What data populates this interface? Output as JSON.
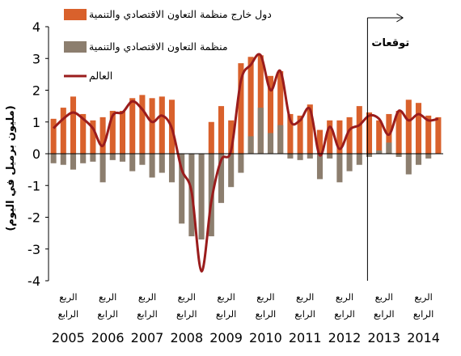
{
  "chart_data": {
    "type": "bar",
    "ylabel": "(مليون برميل في اليوم)",
    "ylim": [
      -4,
      4
    ],
    "yticks": [
      -4,
      -3,
      -2,
      -1,
      0,
      1,
      2,
      3,
      4
    ],
    "forecast_label": "توقعات",
    "forecast_start_index": 32,
    "quarter_line1": "الربع",
    "quarter_line2": "الرابع",
    "years": [
      "2005",
      "2006",
      "2007",
      "2008",
      "2009",
      "2010",
      "2011",
      "2012",
      "2013",
      "2014"
    ],
    "x": [
      "2005Q1",
      "2005Q2",
      "2005Q3",
      "2005Q4",
      "2006Q1",
      "2006Q2",
      "2006Q3",
      "2006Q4",
      "2007Q1",
      "2007Q2",
      "2007Q3",
      "2007Q4",
      "2008Q1",
      "2008Q2",
      "2008Q3",
      "2008Q4",
      "2009Q1",
      "2009Q2",
      "2009Q3",
      "2009Q4",
      "2010Q1",
      "2010Q2",
      "2010Q3",
      "2010Q4",
      "2011Q1",
      "2011Q2",
      "2011Q3",
      "2011Q4",
      "2012Q1",
      "2012Q2",
      "2012Q3",
      "2012Q4",
      "2013Q1",
      "2013Q2",
      "2013Q3",
      "2013Q4",
      "2014Q1",
      "2014Q2",
      "2014Q3",
      "2014Q4"
    ],
    "series": [
      {
        "name": "دول خارج منظمة التعاون الاقتصادي والتنمية",
        "type": "bar",
        "color": "#d9612c",
        "values": [
          1.1,
          1.45,
          1.8,
          1.25,
          1.05,
          1.15,
          1.35,
          1.35,
          1.75,
          1.85,
          1.75,
          1.8,
          1.7,
          0.0,
          0.0,
          0.0,
          1.0,
          1.5,
          1.05,
          2.85,
          3.05,
          3.1,
          2.45,
          2.6,
          1.25,
          1.2,
          1.55,
          0.75,
          1.05,
          1.05,
          1.15,
          1.5,
          1.3,
          1.05,
          1.25,
          1.35,
          1.7,
          1.6,
          1.2,
          1.15
        ]
      },
      {
        "name": "منظمة التعاون الاقتصادي والتنمية",
        "type": "bar",
        "color": "#8c7e6e",
        "values": [
          -0.3,
          -0.35,
          -0.5,
          -0.3,
          -0.25,
          -0.9,
          -0.2,
          -0.25,
          -0.55,
          -0.35,
          -0.75,
          -0.6,
          -0.9,
          -2.2,
          -2.6,
          -2.7,
          -2.6,
          -1.55,
          -1.05,
          -0.6,
          0.55,
          1.45,
          0.65,
          0.9,
          -0.15,
          -0.2,
          -0.15,
          -0.8,
          -0.15,
          -0.9,
          -0.55,
          -0.35,
          -0.1,
          0.1,
          0.35,
          -0.1,
          -0.65,
          -0.35,
          -0.15,
          0.0
        ]
      },
      {
        "name": "العالم",
        "type": "line",
        "color": "#9a1c1c",
        "values": [
          0.8,
          1.1,
          1.3,
          1.1,
          0.8,
          0.25,
          1.2,
          1.3,
          1.65,
          1.4,
          1.0,
          1.2,
          0.8,
          -0.5,
          -1.2,
          -3.7,
          -1.5,
          -0.2,
          0.1,
          2.3,
          2.8,
          3.1,
          2.0,
          2.6,
          1.05,
          1.05,
          1.4,
          -0.05,
          0.85,
          0.15,
          0.75,
          0.9,
          1.2,
          1.1,
          0.6,
          1.35,
          1.05,
          1.25,
          1.05,
          1.1
        ]
      }
    ],
    "legend_position": "top"
  }
}
